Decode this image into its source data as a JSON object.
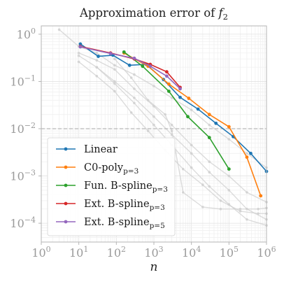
{
  "chart_data": {
    "type": "line",
    "title": "Approximation error of f₂",
    "xlabel": "n",
    "ylabel": "",
    "x_scale": "log",
    "y_scale": "log",
    "xlim": [
      1,
      1000000
    ],
    "ylim": [
      4e-05,
      1.5
    ],
    "x_ticks": [
      {
        "value": 1,
        "base": "10",
        "exp": "0"
      },
      {
        "value": 10,
        "base": "10",
        "exp": "1"
      },
      {
        "value": 100,
        "base": "10",
        "exp": "2"
      },
      {
        "value": 1000,
        "base": "10",
        "exp": "3"
      },
      {
        "value": 10000,
        "base": "10",
        "exp": "4"
      },
      {
        "value": 100000,
        "base": "10",
        "exp": "5"
      },
      {
        "value": 1000000,
        "base": "10",
        "exp": "6"
      }
    ],
    "y_ticks": [
      {
        "value": 0.0001,
        "base": "10",
        "exp": "−4"
      },
      {
        "value": 0.001,
        "base": "10",
        "exp": "−3"
      },
      {
        "value": 0.01,
        "base": "10",
        "exp": "−2"
      },
      {
        "value": 0.1,
        "base": "10",
        "exp": "−1"
      },
      {
        "value": 1,
        "base": "10",
        "exp": "0"
      }
    ],
    "grid": true,
    "reference_line": {
      "y": 0.01,
      "style": "dashed",
      "color": "#b8b8b8"
    },
    "legend_position": "lower-left",
    "series": [
      {
        "name": "Linear",
        "label_main": "Linear",
        "label_sub": "",
        "color": "#1f77b4",
        "x": [
          11,
          33,
          81,
          225,
          625,
          1800,
          5000,
          15000,
          45000,
          130000,
          380000,
          1000000
        ],
        "y": [
          0.62,
          0.34,
          0.36,
          0.22,
          0.23,
          0.11,
          0.046,
          0.026,
          0.013,
          0.0068,
          0.003,
          0.00125
        ]
      },
      {
        "name": "C0-poly_p=3",
        "label_main": "C0-poly",
        "label_sub": "p=3",
        "color": "#ff7f0e",
        "x": [
          160,
          700,
          2500,
          8500,
          30000,
          100000,
          300000,
          700000
        ],
        "y": [
          0.4,
          0.21,
          0.088,
          0.044,
          0.02,
          0.011,
          0.0025,
          0.00038
        ]
      },
      {
        "name": "Fun. B-spline_p=3",
        "label_main": "Fun. B-spline",
        "label_sub": "p=3",
        "color": "#2ca02c",
        "x": [
          160,
          500,
          2500,
          8000,
          30000,
          100000
        ],
        "y": [
          0.42,
          0.21,
          0.062,
          0.018,
          0.0065,
          0.0014
        ]
      },
      {
        "name": "Ext. B-spline_p=3",
        "label_main": "Ext. B-spline",
        "label_sub": "p=3",
        "color": "#d62728",
        "x": [
          11,
          70,
          300,
          800,
          2200,
          5000
        ],
        "y": [
          0.55,
          0.4,
          0.3,
          0.23,
          0.16,
          0.075
        ]
      },
      {
        "name": "Ext. B-spline_p=5",
        "label_main": "Ext. B-spline",
        "label_sub": "p=5",
        "color": "#9467bd",
        "x": [
          11,
          70,
          300,
          800,
          2200,
          5000
        ],
        "y": [
          0.54,
          0.39,
          0.31,
          0.21,
          0.13,
          0.07
        ]
      }
    ],
    "background_series_color": "#d0d0d0",
    "background_series": [
      {
        "x": [
          3,
          10,
          30,
          90,
          300,
          1000,
          3000,
          10000,
          30000,
          100000,
          300000,
          1000000
        ],
        "y": [
          1.25,
          0.55,
          0.4,
          0.22,
          0.14,
          0.08,
          0.045,
          0.025,
          0.012,
          0.006,
          0.003,
          0.0015
        ]
      },
      {
        "x": [
          10,
          30,
          90,
          300,
          1000,
          3000,
          10000,
          30000,
          100000,
          300000,
          1000000
        ],
        "y": [
          0.4,
          0.28,
          0.18,
          0.07,
          0.03,
          0.012,
          0.0045,
          0.002,
          0.001,
          0.00045,
          0.00028
        ]
      },
      {
        "x": [
          10,
          30,
          90,
          250,
          700,
          2000,
          6000,
          20000,
          60000,
          200000,
          600000,
          1000000
        ],
        "y": [
          0.26,
          0.13,
          0.062,
          0.022,
          0.009,
          0.0035,
          0.0014,
          0.00065,
          0.0003,
          0.00018,
          0.00016,
          0.00016
        ]
      },
      {
        "x": [
          90,
          250,
          700,
          2000,
          3000,
          6000,
          20000,
          60000,
          200000,
          600000,
          1000000
        ],
        "y": [
          0.3,
          0.12,
          0.04,
          0.02,
          0.009,
          0.00045,
          0.00022,
          0.0002,
          0.0002,
          0.0002,
          0.00021
        ]
      },
      {
        "x": [
          10,
          30,
          90,
          300,
          1000,
          3000,
          10000,
          30000,
          100000,
          300000,
          1000000
        ],
        "y": [
          0.35,
          0.2,
          0.1,
          0.045,
          0.018,
          0.0075,
          0.003,
          0.0012,
          0.0005,
          0.0002,
          0.00012
        ]
      },
      {
        "x": [
          30,
          90,
          300,
          1000,
          3000,
          10000,
          30000,
          100000,
          300000,
          1000000
        ],
        "y": [
          0.2,
          0.09,
          0.035,
          0.012,
          0.0045,
          0.0015,
          0.0006,
          0.00025,
          0.00012,
          9e-05
        ]
      }
    ]
  }
}
